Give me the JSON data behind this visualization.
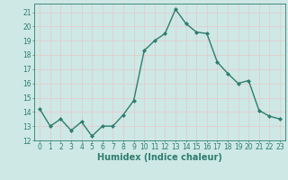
{
  "x": [
    0,
    1,
    2,
    3,
    4,
    5,
    6,
    7,
    8,
    9,
    10,
    11,
    12,
    13,
    14,
    15,
    16,
    17,
    18,
    19,
    20,
    21,
    22,
    23
  ],
  "y": [
    14.2,
    13.0,
    13.5,
    12.7,
    13.3,
    12.3,
    13.0,
    13.0,
    13.8,
    14.8,
    18.3,
    19.0,
    19.5,
    21.2,
    20.2,
    19.6,
    19.5,
    17.5,
    16.7,
    16.0,
    16.2,
    14.1,
    13.7,
    13.5
  ],
  "line_color": "#2e7d6e",
  "marker": "D",
  "markersize": 2.0,
  "linewidth": 1.0,
  "xlabel": "Humidex (Indice chaleur)",
  "xlabel_fontsize": 7,
  "bg_color": "#cde8e5",
  "grid_color": "#e8c8c8",
  "tick_color": "#2e7d6e",
  "ylim": [
    12,
    21.6
  ],
  "yticks": [
    12,
    13,
    14,
    15,
    16,
    17,
    18,
    19,
    20,
    21
  ],
  "xlim": [
    -0.5,
    23.5
  ],
  "xticks": [
    0,
    1,
    2,
    3,
    4,
    5,
    6,
    7,
    8,
    9,
    10,
    11,
    12,
    13,
    14,
    15,
    16,
    17,
    18,
    19,
    20,
    21,
    22,
    23
  ],
  "tick_fontsize": 5.5
}
